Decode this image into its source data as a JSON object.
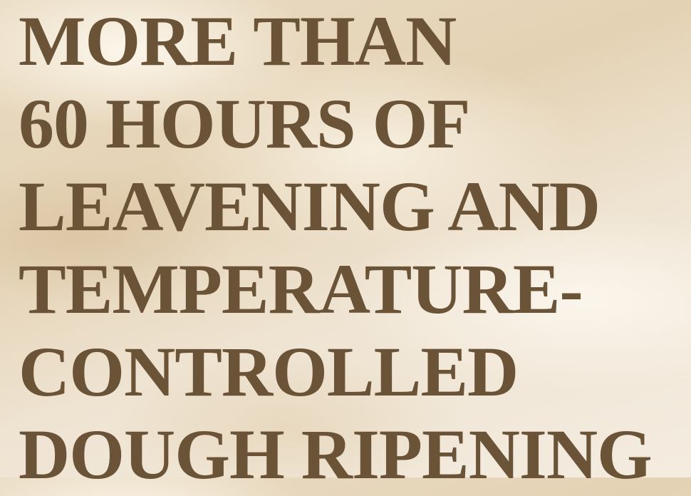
{
  "heading": {
    "lines": [
      "MORE THAN",
      "60 HOURS OF",
      "LEAVENING AND",
      "TEMPERATURE-",
      "CONTROLLED",
      "DOUGH RIPENING"
    ]
  }
}
